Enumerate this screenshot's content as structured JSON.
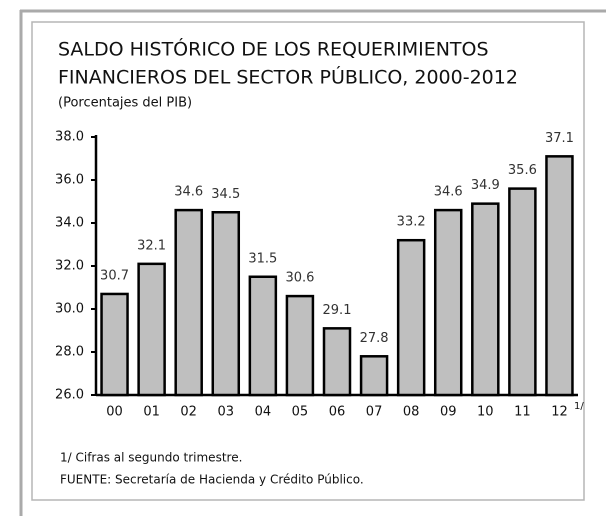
{
  "chart_data": {
    "type": "bar",
    "title": [
      "SALDO HISTÓRICO DE LOS REQUERIMIENTOS",
      "FINANCIEROS DEL SECTOR PÚBLICO, 2000-2012"
    ],
    "subtitle": "(Porcentajes del PIB)",
    "categories": [
      "00",
      "01",
      "02",
      "03",
      "04",
      "05",
      "06",
      "07",
      "08",
      "09",
      "10",
      "11",
      "12"
    ],
    "values": [
      30.7,
      32.1,
      34.6,
      34.5,
      31.5,
      30.6,
      29.1,
      27.8,
      33.2,
      34.6,
      34.9,
      35.6,
      37.1
    ],
    "color": "#bfbfbf",
    "ylim": [
      26,
      38
    ],
    "yticks": [
      {
        "value": 26,
        "label": "26.0"
      },
      {
        "value": 28,
        "label": "28.0"
      },
      {
        "value": 30,
        "label": "30.0"
      },
      {
        "value": 32,
        "label": "32.0"
      },
      {
        "value": 34,
        "label": "34.0"
      },
      {
        "value": 36,
        "label": "36.0"
      },
      {
        "value": 38,
        "label": "38.0"
      }
    ],
    "x_note": "1/",
    "notes": [
      "1/ Cifras al segundo trimestre.",
      "FUENTE: Secretaría de Hacienda y Crédito Público."
    ]
  }
}
